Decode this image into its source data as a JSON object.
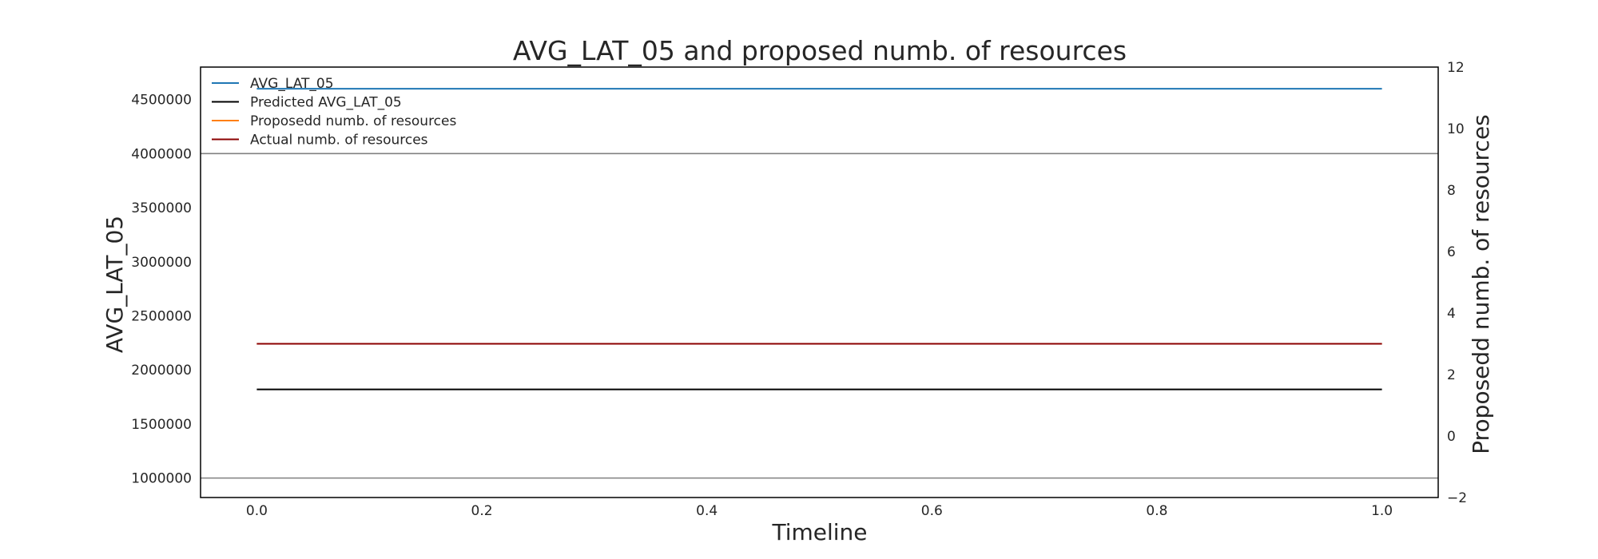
{
  "chart_data": {
    "type": "line",
    "title": "AVG_LAT_05 and proposed numb. of resources",
    "xlabel": "Timeline",
    "ylabel": "AVG_LAT_05",
    "ylabel_right": "Proposedd numb. of resources",
    "xlim": [
      -0.05,
      1.05
    ],
    "ylim": [
      820000,
      4800000
    ],
    "ylim_right": [
      -2,
      12
    ],
    "x_ticks": [
      "0.0",
      "0.2",
      "0.4",
      "0.6",
      "0.8",
      "1.0"
    ],
    "x_tick_values": [
      0.0,
      0.2,
      0.4,
      0.6,
      0.8,
      1.0
    ],
    "y_ticks": [
      "1000000",
      "1500000",
      "2000000",
      "2500000",
      "3000000",
      "3500000",
      "4000000",
      "4500000"
    ],
    "y_tick_values": [
      1000000,
      1500000,
      2000000,
      2500000,
      3000000,
      3500000,
      4000000,
      4500000
    ],
    "y_ticks_right": [
      "−2",
      "0",
      "2",
      "4",
      "6",
      "8",
      "10",
      "12"
    ],
    "y_tick_values_right": [
      -2,
      0,
      2,
      4,
      6,
      8,
      10,
      12
    ],
    "hlines": [
      {
        "axis": "left",
        "y": 4000000,
        "color": "#808080"
      },
      {
        "axis": "left",
        "y": 1000000,
        "color": "#808080"
      }
    ],
    "legend_position": "top-left",
    "series": [
      {
        "name": "AVG_LAT_05",
        "axis": "left",
        "color": "#1f77b4",
        "x": [
          0.0,
          1.0
        ],
        "values": [
          4600000,
          4600000
        ]
      },
      {
        "name": "Predicted AVG_LAT_05",
        "axis": "left",
        "color": "#000000",
        "x": [
          0.0,
          1.0
        ],
        "values": [
          1820000,
          1820000
        ]
      },
      {
        "name": "Proposedd numb. of resources",
        "axis": "right",
        "color": "#ff7f0e",
        "x": [
          0.0,
          1.0
        ],
        "values": [
          3,
          3
        ]
      },
      {
        "name": "Actual numb. of resources",
        "axis": "right",
        "color": "#8b0000",
        "x": [
          0.0,
          1.0
        ],
        "values": [
          3,
          3
        ]
      }
    ]
  }
}
